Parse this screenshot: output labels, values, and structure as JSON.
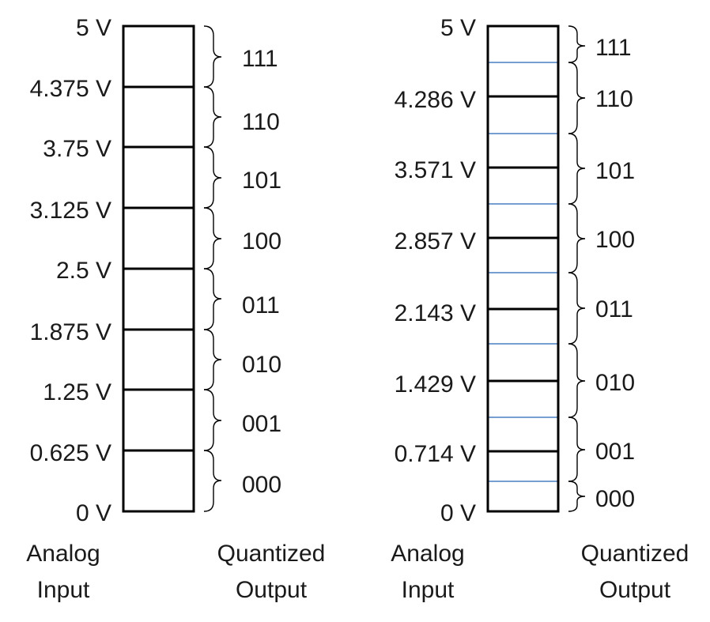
{
  "left_diagram": {
    "input_labels": [
      "5 V",
      "4.375 V",
      "3.75 V",
      "3.125 V",
      "2.5 V",
      "1.875 V",
      "1.25 V",
      "0.625 V",
      "0 V"
    ],
    "output_codes": [
      "111",
      "110",
      "101",
      "100",
      "011",
      "010",
      "001",
      "000"
    ],
    "input_caption": [
      "Analog",
      "Input"
    ],
    "output_caption": [
      "Quantized",
      "Output"
    ]
  },
  "right_diagram": {
    "input_labels": [
      "5 V",
      "4.286 V",
      "3.571 V",
      "2.857 V",
      "2.143 V",
      "1.429 V",
      "0.714 V",
      "0 V"
    ],
    "output_codes": [
      "111",
      "110",
      "101",
      "100",
      "011",
      "010",
      "001",
      "000"
    ],
    "input_caption": [
      "Analog",
      "Input"
    ],
    "output_caption": [
      "Quantized",
      "Output"
    ]
  },
  "colors": {
    "outline": "#000000",
    "midpoint_line": "#4a7fc1",
    "text": "#1a1a1a"
  }
}
